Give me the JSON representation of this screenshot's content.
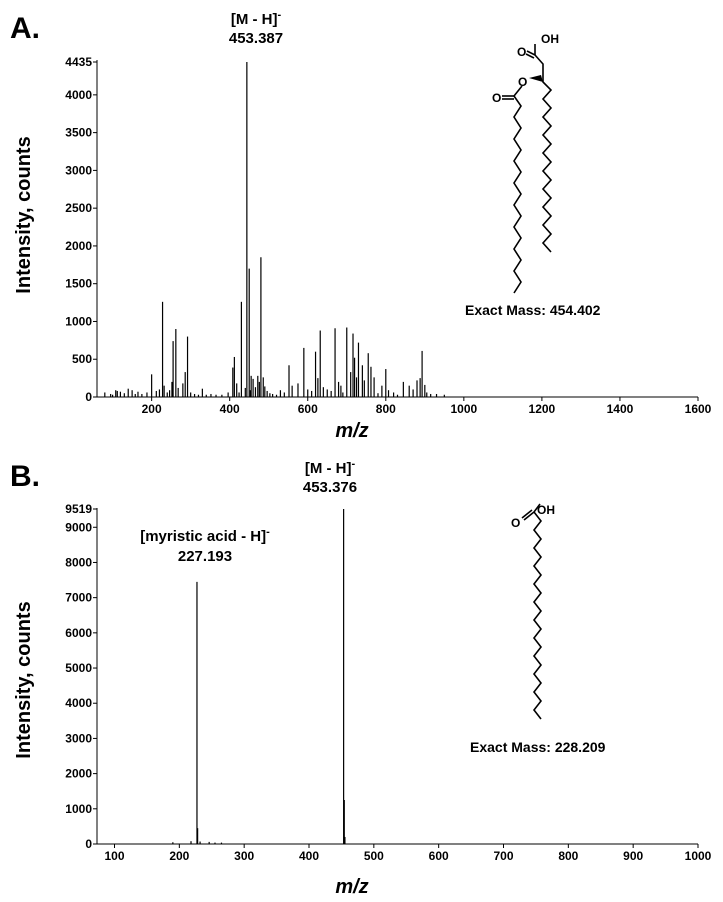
{
  "chart_data": [
    {
      "type": "bar",
      "panel_label": "A.",
      "xlabel": "m/z",
      "ylabel": "Intensity, counts",
      "xlim": [
        60,
        1600
      ],
      "ylim": [
        0,
        4435
      ],
      "x_ticks": [
        200,
        400,
        600,
        800,
        1000,
        1200,
        1400,
        1600
      ],
      "y_ticks": [
        0,
        500,
        1000,
        1500,
        2000,
        2500,
        3000,
        3500,
        4000,
        4435
      ],
      "grid": false,
      "annotations": [
        {
          "text": "[M - H]",
          "superscript": "-",
          "value": "453.387",
          "x": 453.387
        }
      ],
      "structure_labels": {
        "atoms": [
          "OH",
          "O",
          "O",
          "O"
        ],
        "exact_mass": "Exact Mass: 454.402"
      },
      "peaks": {
        "x": [
          80,
          95,
          100,
          108,
          112,
          120,
          130,
          140,
          150,
          158,
          165,
          175,
          188,
          200,
          212,
          220,
          228,
          232,
          240,
          246,
          252,
          255,
          262,
          268,
          280,
          286,
          292,
          300,
          310,
          320,
          330,
          340,
          352,
          365,
          380,
          396,
          408,
          412,
          418,
          424,
          430,
          440,
          444,
          450,
          453,
          455,
          460,
          466,
          472,
          476,
          480,
          486,
          490,
          496,
          503,
          510,
          520,
          530,
          540,
          552,
          560,
          575,
          590,
          600,
          610,
          620,
          626,
          632,
          640,
          650,
          660,
          670,
          679,
          685,
          690,
          700,
          710,
          716,
          720,
          725,
          730,
          740,
          745,
          755,
          762,
          770,
          780,
          790,
          800,
          807,
          820,
          830,
          845,
          860,
          870,
          880,
          888,
          893,
          900,
          905,
          915,
          930,
          950
        ],
        "y": [
          60,
          40,
          30,
          90,
          80,
          70,
          50,
          110,
          90,
          40,
          70,
          40,
          60,
          300,
          80,
          100,
          1260,
          150,
          60,
          90,
          200,
          740,
          900,
          120,
          180,
          330,
          800,
          60,
          40,
          30,
          110,
          30,
          40,
          30,
          30,
          60,
          390,
          530,
          180,
          60,
          1260,
          120,
          4435,
          1700,
          90,
          280,
          240,
          130,
          280,
          200,
          1850,
          260,
          140,
          80,
          50,
          40,
          30,
          90,
          60,
          420,
          150,
          180,
          650,
          100,
          80,
          600,
          250,
          880,
          130,
          100,
          80,
          910,
          200,
          150,
          60,
          920,
          330,
          840,
          520,
          260,
          720,
          420,
          220,
          580,
          400,
          260,
          50,
          150,
          370,
          90,
          60,
          30,
          200,
          150,
          100,
          220,
          250,
          610,
          160,
          60,
          40,
          40,
          30
        ]
      }
    },
    {
      "type": "bar",
      "panel_label": "B.",
      "xlabel": "m/z",
      "ylabel": "Intensity, counts",
      "xlim": [
        73,
        1000
      ],
      "ylim": [
        0,
        9519
      ],
      "x_ticks": [
        100,
        200,
        300,
        400,
        500,
        600,
        700,
        800,
        900,
        1000
      ],
      "y_ticks": [
        0,
        1000,
        2000,
        3000,
        4000,
        5000,
        6000,
        7000,
        8000,
        9000,
        9519
      ],
      "grid": false,
      "annotations": [
        {
          "text": "[M - H]",
          "superscript": "-",
          "value": "453.376",
          "x": 453.376
        },
        {
          "text": "[myristic acid - H]",
          "superscript": "-",
          "value": "227.193",
          "x": 227.193
        }
      ],
      "structure_labels": {
        "atoms": [
          "OH",
          "O"
        ],
        "exact_mass": "Exact Mass: 228.209"
      },
      "peaks": {
        "x": [
          190,
          218,
          227.2,
          228.2,
          232,
          246,
          255,
          265,
          453.4,
          454.4,
          455.4
        ],
        "y": [
          50,
          80,
          7450,
          450,
          70,
          60,
          40,
          40,
          9519,
          1250,
          200
        ]
      }
    }
  ]
}
